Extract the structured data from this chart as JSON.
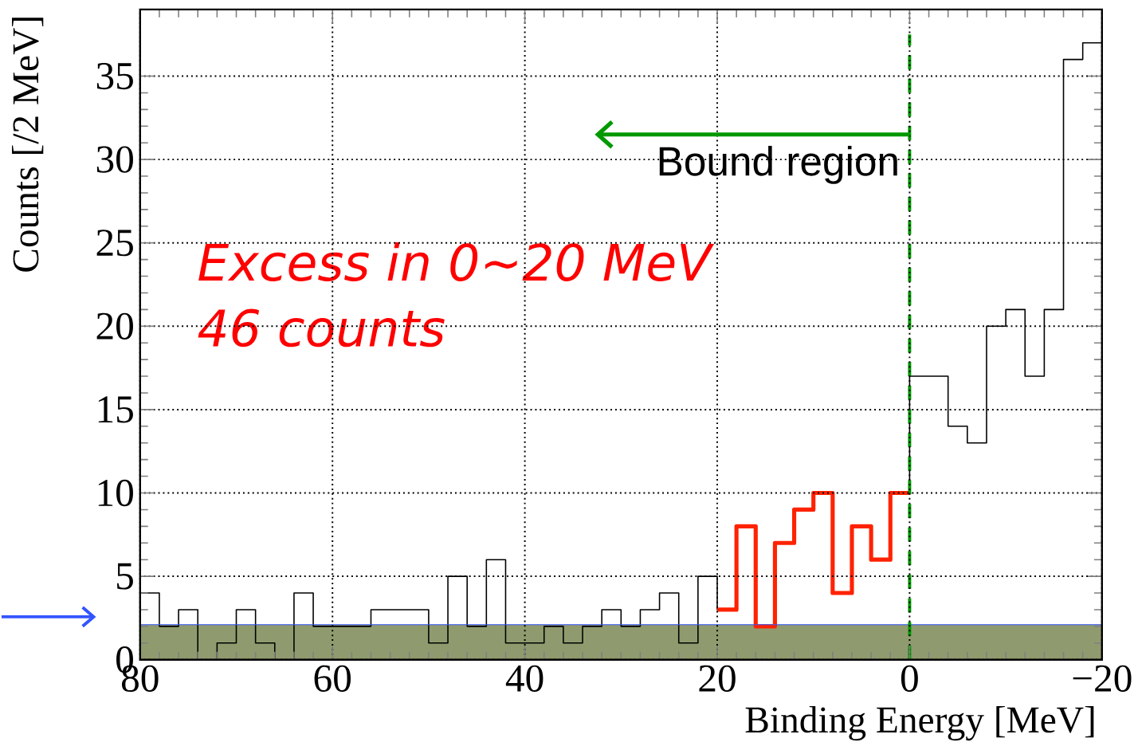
{
  "chart_data": {
    "type": "histogram",
    "xlabel": "Binding Energy [MeV]",
    "ylabel": "Counts [/2 MeV]",
    "bins": [
      80,
      78,
      76,
      74,
      72,
      70,
      68,
      66,
      64,
      62,
      60,
      58,
      56,
      54,
      52,
      50,
      48,
      46,
      44,
      42,
      40,
      38,
      36,
      34,
      32,
      30,
      28,
      26,
      24,
      22,
      20,
      18,
      16,
      14,
      12,
      10,
      8,
      6,
      4,
      2,
      0,
      -2,
      -4,
      -6,
      -8,
      -10,
      -12,
      -14,
      -16,
      -18,
      -20
    ],
    "series": [
      {
        "color": "#000000",
        "values": [
          4,
          2,
          3,
          0,
          1,
          3,
          1,
          0,
          4,
          2,
          2,
          2,
          3,
          3,
          3,
          1,
          5,
          2,
          6,
          1,
          1,
          2,
          1,
          2,
          3,
          2,
          3,
          4,
          1,
          5,
          3,
          8,
          2,
          7,
          9,
          10,
          4,
          8,
          6,
          10,
          17,
          17,
          14,
          13,
          20,
          21,
          17,
          21,
          36,
          37
        ]
      },
      {
        "color": "#ff2200",
        "bins": [
          20,
          18,
          16,
          14,
          12,
          10,
          8,
          6,
          4,
          2,
          0
        ],
        "values": [
          3,
          8,
          2,
          7,
          9,
          10,
          4,
          8,
          6,
          10
        ]
      }
    ],
    "xlim": [
      80,
      -20
    ],
    "ylim": [
      0,
      39
    ],
    "xticks": [
      80,
      60,
      40,
      20,
      0,
      {
        "value": -20,
        "label": "−20"
      }
    ],
    "yticks": [
      0,
      5,
      10,
      15,
      20,
      25,
      30,
      35
    ],
    "grid": true,
    "bands": [
      {
        "axis": "y",
        "from": 0,
        "to": 2.1,
        "color": "#8f9b6e"
      }
    ],
    "ref_lines": [
      {
        "axis": "y",
        "value": 2.1,
        "color": "#3355ff"
      },
      {
        "axis": "x",
        "value": 0,
        "color": "#009900",
        "line_style": "dashed"
      }
    ],
    "annotations": [
      {
        "text": "Bound region",
        "x": 0,
        "y": 31.5
      },
      "Excess in 0∼20 MeV",
      "46 counts"
    ]
  }
}
